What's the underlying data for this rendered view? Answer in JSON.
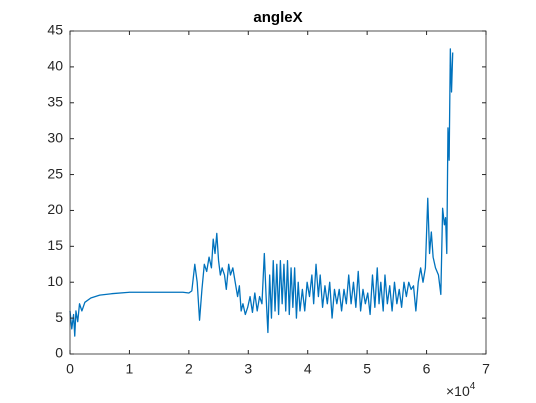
{
  "chart_data": {
    "type": "line",
    "title": "angleX",
    "x_exponent": {
      "base": "×10",
      "power": "4"
    },
    "xlim": [
      0,
      70000
    ],
    "xticks": [
      0,
      {
        "value": 10000,
        "label": "1"
      },
      {
        "value": 20000,
        "label": "2"
      },
      {
        "value": 30000,
        "label": "3"
      },
      {
        "value": 40000,
        "label": "4"
      },
      {
        "value": 50000,
        "label": "5"
      },
      {
        "value": 60000,
        "label": "6"
      },
      {
        "value": 70000,
        "label": "7"
      }
    ],
    "ylim": [
      0,
      45
    ],
    "yticks": [
      0,
      5,
      10,
      15,
      20,
      25,
      30,
      35,
      40,
      45
    ],
    "grid": false,
    "series": [
      {
        "color": "#0072bd",
        "x": [
          0,
          300,
          600,
          800,
          1000,
          1300,
          1600,
          2000,
          2500,
          3500,
          5000,
          7000,
          10000,
          13000,
          16000,
          19000,
          20000,
          20500,
          21000,
          21400,
          21800,
          22200,
          22600,
          23000,
          23400,
          23800,
          24100,
          24400,
          24700,
          25000,
          25300,
          25600,
          26000,
          26300,
          26700,
          27000,
          27400,
          27800,
          28200,
          28500,
          28800,
          29100,
          29500,
          29900,
          30300,
          30700,
          31100,
          31500,
          31900,
          32300,
          32700,
          33000,
          33300,
          33600,
          33900,
          34200,
          34500,
          34800,
          35100,
          35400,
          35700,
          36000,
          36300,
          36600,
          36900,
          37200,
          37500,
          37800,
          38100,
          38400,
          38700,
          39100,
          39500,
          39900,
          40300,
          40700,
          41000,
          41400,
          41800,
          42100,
          42500,
          42900,
          43300,
          43700,
          44100,
          44500,
          44900,
          45300,
          45700,
          46100,
          46500,
          46900,
          47300,
          47700,
          48100,
          48500,
          48900,
          49300,
          49700,
          50100,
          50500,
          50900,
          51300,
          51700,
          52000,
          52300,
          52700,
          53000,
          53400,
          53800,
          54200,
          54600,
          55000,
          55400,
          55800,
          56200,
          56600,
          57000,
          57400,
          57800,
          58200,
          58600,
          59000,
          59400,
          59800,
          60200,
          60500,
          60800,
          61100,
          61500,
          62000,
          62400,
          62700,
          63000,
          63200,
          63400,
          63600,
          63800,
          64000,
          64200,
          64400
        ],
        "values": [
          6,
          3.5,
          5.5,
          2.5,
          6,
          4.5,
          7,
          6,
          7.2,
          7.8,
          8.2,
          8.4,
          8.6,
          8.6,
          8.6,
          8.6,
          8.5,
          8.8,
          12.5,
          10,
          4.7,
          9,
          12.5,
          11.5,
          13.5,
          12,
          16,
          14,
          16.8,
          13,
          11,
          12,
          11,
          9,
          12.5,
          11,
          12,
          10,
          8,
          9.5,
          6,
          7,
          5.5,
          6.5,
          8,
          5.8,
          8.5,
          6,
          8,
          7,
          14,
          8,
          3,
          11,
          5,
          13,
          6,
          12.5,
          5.5,
          13,
          7,
          12.5,
          6,
          13,
          5.5,
          12,
          6.5,
          12,
          5,
          10,
          6,
          9,
          6,
          10,
          8,
          11,
          7,
          12.5,
          8,
          11,
          6.5,
          9.5,
          7,
          10,
          5,
          9,
          7,
          9,
          6,
          9,
          7,
          11,
          7,
          10,
          6.5,
          11.5,
          6,
          9,
          7,
          8.5,
          5.5,
          11,
          6.5,
          12,
          7,
          10,
          6,
          11,
          7,
          9.5,
          6,
          10,
          7,
          9,
          6.5,
          10,
          8,
          10,
          9,
          9.5,
          6,
          10,
          12,
          10,
          12,
          21.7,
          14,
          17,
          13.5,
          12,
          11,
          8.3,
          20.3,
          18,
          19,
          14,
          31.5,
          27,
          42.5,
          36.5,
          42
        ]
      }
    ]
  }
}
